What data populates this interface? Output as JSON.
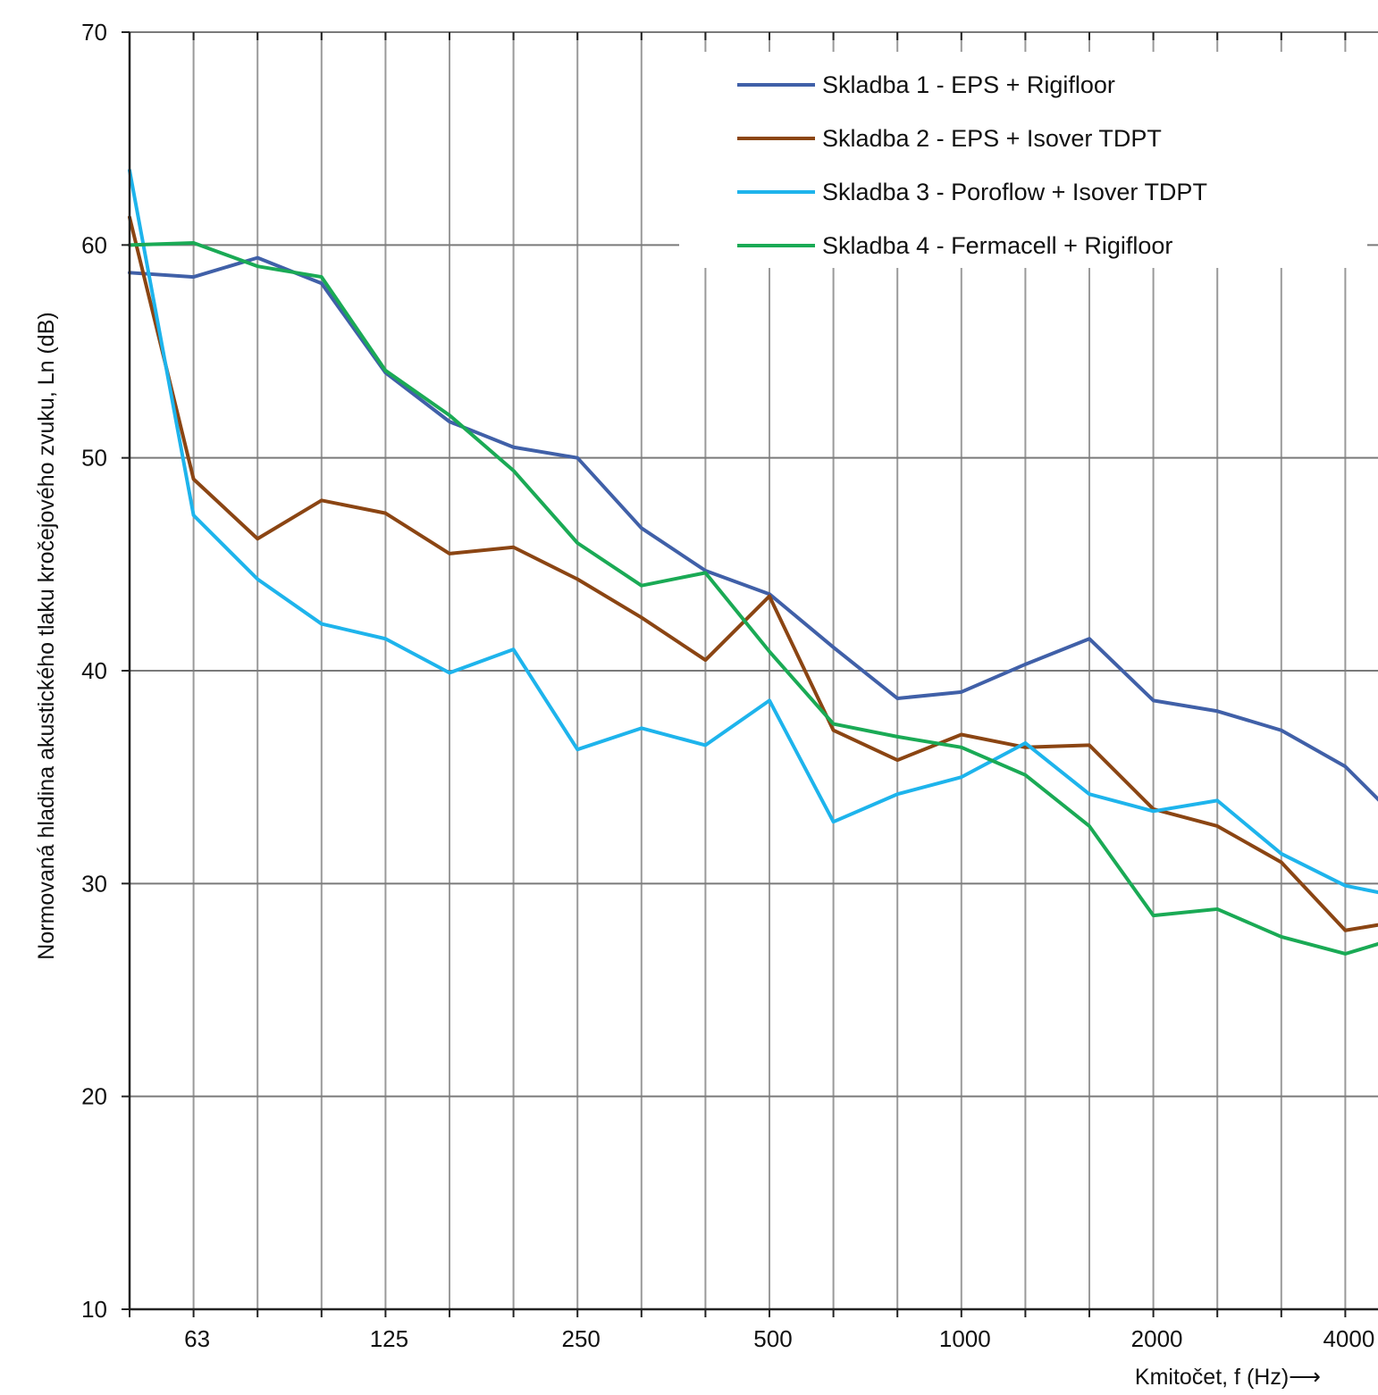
{
  "chart_data": {
    "type": "line",
    "title": "",
    "xlabel": "Kmitočet, f (Hz)⟶",
    "ylabel": "Normovaná hladina akustického tlaku kročejového zvuku, Ln (dB)",
    "x_scale": "log-third-octave",
    "x": [
      50,
      63,
      80,
      100,
      125,
      160,
      200,
      250,
      315,
      400,
      500,
      630,
      800,
      1000,
      1250,
      1600,
      2000,
      2500,
      3150,
      4000,
      5000
    ],
    "x_tick_labels": [
      "63",
      "125",
      "250",
      "500",
      "1000",
      "2000",
      "4000"
    ],
    "x_tick_values": [
      63,
      125,
      250,
      500,
      1000,
      2000,
      4000
    ],
    "ylim": [
      10,
      70
    ],
    "y_ticks": [
      10,
      20,
      30,
      40,
      50,
      60,
      70
    ],
    "grid": true,
    "legend_position": "top-right",
    "series": [
      {
        "name": "Skladba 1 - EPS + Rigifloor",
        "color": "#4060A8",
        "values": [
          58.7,
          58.5,
          59.4,
          58.2,
          54.0,
          51.7,
          50.5,
          50.0,
          46.7,
          44.7,
          43.6,
          41.1,
          38.7,
          39.0,
          40.3,
          41.5,
          38.6,
          38.1,
          37.2,
          35.5,
          32.5
        ]
      },
      {
        "name": "Skladba 2 - EPS + Isover TDPT",
        "color": "#8B4513",
        "values": [
          61.3,
          49.0,
          46.2,
          48.0,
          47.4,
          45.5,
          45.8,
          44.3,
          42.5,
          40.5,
          43.5,
          37.2,
          35.8,
          37.0,
          36.4,
          36.5,
          33.5,
          32.7,
          31.0,
          27.8,
          28.3
        ]
      },
      {
        "name": "Skladba 3 - Poroflow + Isover TDPT",
        "color": "#1EB4EC",
        "values": [
          63.5,
          47.3,
          44.3,
          42.2,
          41.5,
          39.9,
          41.0,
          36.3,
          37.3,
          36.5,
          38.6,
          32.9,
          34.2,
          35.0,
          36.6,
          34.2,
          33.4,
          33.9,
          31.4,
          29.9,
          29.3
        ]
      },
      {
        "name": "Skladba 4 - Fermacell + Rigifloor",
        "color": "#1AAA55",
        "values": [
          60.0,
          60.1,
          59.0,
          58.5,
          54.1,
          52.0,
          49.4,
          46.0,
          44.0,
          44.6,
          40.9,
          37.5,
          36.9,
          36.4,
          35.1,
          32.7,
          28.5,
          28.8,
          27.5,
          26.7,
          27.6
        ]
      }
    ]
  }
}
